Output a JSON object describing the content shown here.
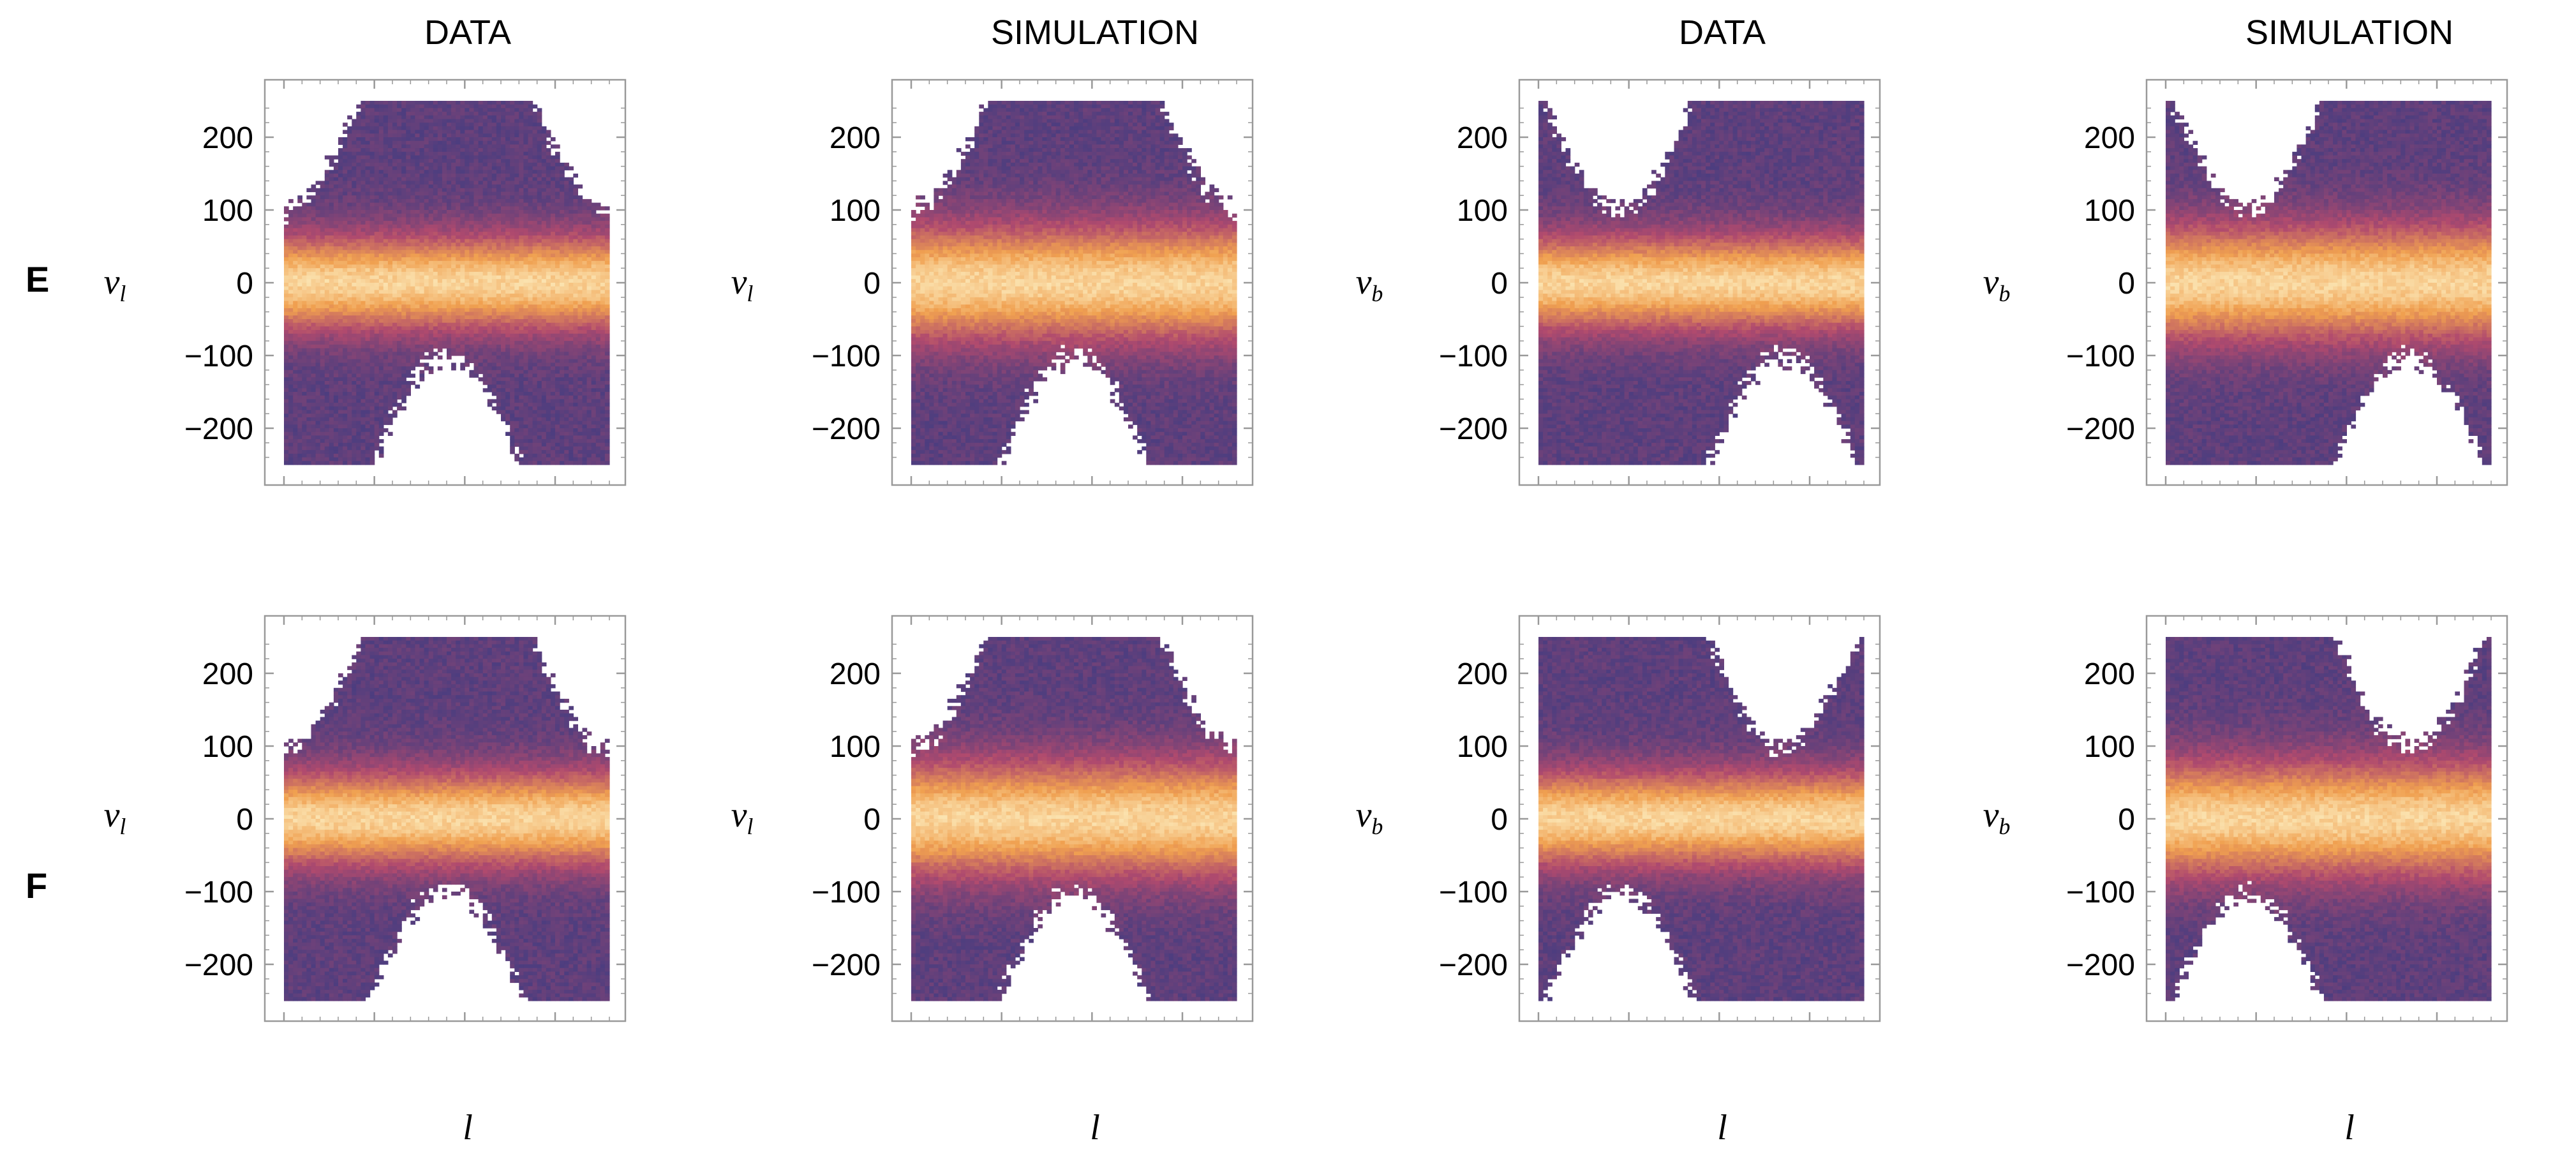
{
  "figure": {
    "column_titles": [
      "DATA",
      "SIMULATION",
      "DATA",
      "SIMULATION"
    ],
    "row_labels": [
      "E",
      "F"
    ],
    "x_axis_label": "l",
    "y_axis_labels": {
      "vl": {
        "base": "v",
        "sub": "l"
      },
      "vb": {
        "base": "v",
        "sub": "b"
      }
    }
  },
  "colors": {
    "low": "#3b3b82",
    "mid": "#b04a6e",
    "high": "#f0a050",
    "peak": "#fbe3b0",
    "frame": "#999999"
  },
  "chart_data": [
    {
      "type": "heatmap",
      "row": "E",
      "title": "DATA",
      "xlabel": "l",
      "ylabel": "v_l",
      "component": "vl",
      "xlim": [
        0,
        360
      ],
      "ylim": [
        -250,
        250
      ],
      "xticks": [
        0,
        100,
        200,
        300
      ],
      "yticks": [
        -200,
        -100,
        0,
        100,
        200
      ],
      "grid": false,
      "band_center": 0,
      "band_amplitude": 0,
      "band_phase_deg": 0,
      "envelope_amplitude": 170,
      "envelope_phase_deg": 180,
      "envelope_offset": 80,
      "band_width": 45,
      "seed": 11
    },
    {
      "type": "heatmap",
      "row": "E",
      "title": "SIMULATION",
      "xlabel": "l",
      "ylabel": "v_l",
      "component": "vl",
      "xlim": [
        0,
        360
      ],
      "ylim": [
        -250,
        250
      ],
      "xticks": [
        0,
        100,
        200,
        300
      ],
      "yticks": [
        -200,
        -100,
        0,
        100,
        200
      ],
      "grid": false,
      "band_center": 0,
      "band_amplitude": 0,
      "band_phase_deg": 0,
      "envelope_amplitude": 170,
      "envelope_phase_deg": 180,
      "envelope_offset": 80,
      "band_width": 55,
      "seed": 23
    },
    {
      "type": "heatmap",
      "row": "E",
      "title": "DATA",
      "xlabel": "l",
      "ylabel": "v_b",
      "component": "vb",
      "xlim": [
        0,
        360
      ],
      "ylim": [
        -250,
        250
      ],
      "xticks": [
        0,
        100,
        200,
        300
      ],
      "yticks": [
        -200,
        -100,
        0,
        100,
        200
      ],
      "grid": false,
      "band_center": 0,
      "band_amplitude": 0,
      "band_phase_deg": 0,
      "envelope_amplitude": 170,
      "envelope_phase_deg": 270,
      "envelope_offset": 80,
      "band_width": 45,
      "seed": 37
    },
    {
      "type": "heatmap",
      "row": "E",
      "title": "SIMULATION",
      "xlabel": "l",
      "ylabel": "v_b",
      "component": "vb",
      "xlim": [
        0,
        360
      ],
      "ylim": [
        -250,
        250
      ],
      "xticks": [
        0,
        100,
        200,
        300
      ],
      "yticks": [
        -200,
        -100,
        0,
        100,
        200
      ],
      "grid": false,
      "band_center": 0,
      "band_amplitude": 0,
      "band_phase_deg": 0,
      "envelope_amplitude": 170,
      "envelope_phase_deg": 270,
      "envelope_offset": 80,
      "band_width": 55,
      "seed": 41
    },
    {
      "type": "heatmap",
      "row": "F",
      "title": "DATA",
      "xlabel": "l",
      "ylabel": "v_l",
      "component": "vl",
      "xlim": [
        0,
        360
      ],
      "ylim": [
        -250,
        250
      ],
      "xticks": [
        0,
        100,
        200,
        300
      ],
      "yticks": [
        -200,
        -100,
        0,
        100,
        200
      ],
      "grid": false,
      "band_center": 0,
      "band_amplitude": 0,
      "band_phase_deg": 0,
      "envelope_amplitude": 170,
      "envelope_phase_deg": 180,
      "envelope_offset": 75,
      "band_width": 45,
      "seed": 53
    },
    {
      "type": "heatmap",
      "row": "F",
      "title": "SIMULATION",
      "xlabel": "l",
      "ylabel": "v_l",
      "component": "vl",
      "xlim": [
        0,
        360
      ],
      "ylim": [
        -250,
        250
      ],
      "xticks": [
        0,
        100,
        200,
        300
      ],
      "yticks": [
        -200,
        -100,
        0,
        100,
        200
      ],
      "grid": false,
      "band_center": 0,
      "band_amplitude": 0,
      "band_phase_deg": 0,
      "envelope_amplitude": 170,
      "envelope_phase_deg": 180,
      "envelope_offset": 80,
      "band_width": 55,
      "seed": 67
    },
    {
      "type": "heatmap",
      "row": "F",
      "title": "DATA",
      "xlabel": "l",
      "ylabel": "v_b",
      "component": "vb",
      "xlim": [
        0,
        360
      ],
      "ylim": [
        -250,
        250
      ],
      "xticks": [
        0,
        100,
        200,
        300
      ],
      "yticks": [
        -200,
        -100,
        0,
        100,
        200
      ],
      "grid": false,
      "band_center": 0,
      "band_amplitude": 0,
      "band_phase_deg": 0,
      "envelope_amplitude": 170,
      "envelope_phase_deg": 90,
      "envelope_offset": 80,
      "band_width": 45,
      "seed": 79
    },
    {
      "type": "heatmap",
      "row": "F",
      "title": "SIMULATION",
      "xlabel": "l",
      "ylabel": "v_b",
      "component": "vb",
      "xlim": [
        0,
        360
      ],
      "ylim": [
        -250,
        250
      ],
      "xticks": [
        0,
        100,
        200,
        300
      ],
      "yticks": [
        -200,
        -100,
        0,
        100,
        200
      ],
      "grid": false,
      "band_center": 0,
      "band_amplitude": 0,
      "band_phase_deg": 0,
      "envelope_amplitude": 170,
      "envelope_phase_deg": 90,
      "envelope_offset": 80,
      "band_width": 55,
      "seed": 83
    }
  ]
}
